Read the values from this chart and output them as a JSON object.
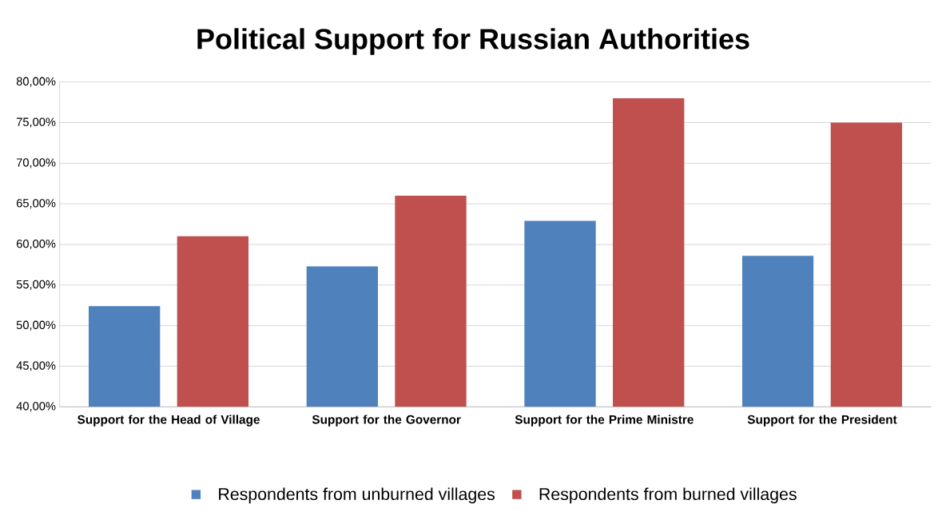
{
  "chart_data": {
    "type": "bar",
    "title": "Political Support for Russian Authorities",
    "categories": [
      "Support for the Head of Village",
      "Support for the Governor",
      "Support for the Prime Ministre",
      "Support for the President"
    ],
    "series": [
      {
        "name": "Respondents from unburned villages",
        "color": "#4f81bd",
        "values": [
          52.4,
          57.3,
          62.9,
          58.6
        ]
      },
      {
        "name": "Respondents from burned villages",
        "color": "#c0504d",
        "values": [
          61,
          66,
          78,
          75
        ]
      }
    ],
    "ylim": [
      40,
      80
    ],
    "yticks": [
      {
        "value": 40,
        "label": "40,00%"
      },
      {
        "value": 45,
        "label": "45,00%"
      },
      {
        "value": 50,
        "label": "50,00%"
      },
      {
        "value": 55,
        "label": "55,00%"
      },
      {
        "value": 60,
        "label": "60,00%"
      },
      {
        "value": 65,
        "label": "65,00%"
      },
      {
        "value": 70,
        "label": "70,00%"
      },
      {
        "value": 75,
        "label": "75,00%"
      },
      {
        "value": 80,
        "label": "80,00%"
      }
    ],
    "grid": "y",
    "legend": "bottom"
  }
}
